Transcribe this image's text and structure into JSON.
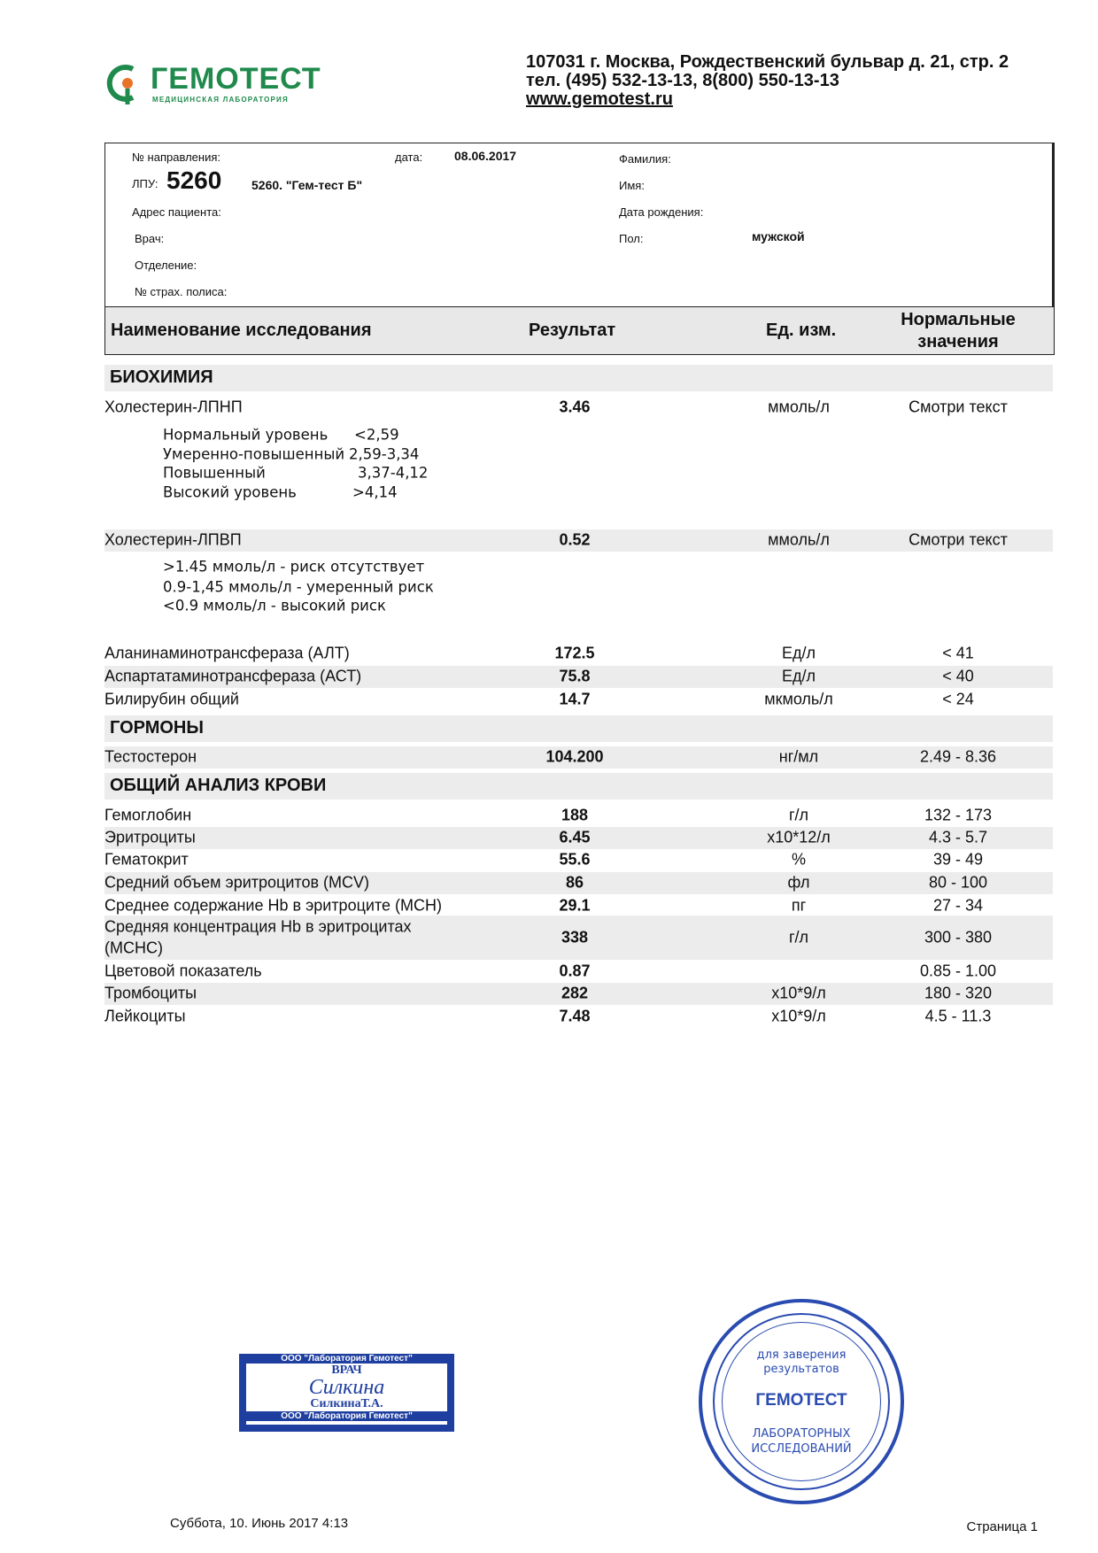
{
  "header": {
    "logo_name": "ГЕМОТЕСТ",
    "logo_sub": "МЕДИЦИНСКАЯ ЛАБОРАТОРИЯ",
    "address": "107031 г. Москва, Рождественский бульвар д. 21, стр. 2",
    "phone": "тел. (495) 532-13-13, 8(800) 550-13-13",
    "website": "www.gemotest.ru",
    "brand_color": "#1f8a4c"
  },
  "patient": {
    "referral_label": "№ направления:",
    "date_label": "дата:",
    "date": "08.06.2017",
    "lpu_label": "ЛПУ:",
    "lpu_code": "5260",
    "lpu_name": "5260. \"Гем-тест Б\"",
    "address_label": "Адрес пациента:",
    "doctor_label": "Врач:",
    "department_label": "Отделение:",
    "policy_label": "№ страх. полиса:",
    "surname_label": "Фамилия:",
    "name_label": "Имя:",
    "dob_label": "Дата рождения:",
    "sex_label": "Пол:",
    "sex": "мужской"
  },
  "table": {
    "headers": {
      "name": "Наименование исследования",
      "result": "Результат",
      "unit": "Ед. изм.",
      "norm_1": "Нормальные",
      "norm_2": "значения"
    },
    "sections": {
      "biochem": "БИОХИМИЯ",
      "hormones": "ГОРМОНЫ",
      "cbc": "ОБЩИЙ АНАЛИЗ КРОВИ"
    },
    "rows": [
      {
        "name": "Холестерин-ЛПНП",
        "result": "3.46",
        "unit": "ммоль/л",
        "norm": "Смотри текст"
      },
      {
        "name": "Холестерин-ЛПВП",
        "result": "0.52",
        "unit": "ммоль/л",
        "norm": "Смотри текст"
      },
      {
        "name": "Аланинаминотрансфераза (АЛТ)",
        "result": "172.5",
        "unit": "Ед/л",
        "norm": "< 41"
      },
      {
        "name": "Аспартатаминотрансфераза (АСТ)",
        "result": "75.8",
        "unit": "Ед/л",
        "norm": "< 40"
      },
      {
        "name": "Билирубин общий",
        "result": "14.7",
        "unit": "мкмоль/л",
        "norm": "< 24"
      },
      {
        "name": "Тестостерон",
        "result": "104.200",
        "unit": "нг/мл",
        "norm": "2.49 - 8.36"
      },
      {
        "name": "Гемоглобин",
        "result": "188",
        "unit": "г/л",
        "norm": "132 - 173"
      },
      {
        "name": "Эритроциты",
        "result": "6.45",
        "unit": "x10*12/л",
        "norm": "4.3 - 5.7"
      },
      {
        "name": "Гематокрит",
        "result": "55.6",
        "unit": "%",
        "norm": "39 - 49"
      },
      {
        "name": "Средний объем эритроцитов (MCV)",
        "result": "86",
        "unit": "фл",
        "norm": "80 - 100"
      },
      {
        "name": "Среднее содержание Hb в эритроците (MCH)",
        "result": "29.1",
        "unit": "пг",
        "norm": "27 - 34"
      },
      {
        "name": "Средняя концентрация Hb в эритроцитах",
        "name_2": "(MCHC)",
        "result": "338",
        "unit": "г/л",
        "norm": "300 - 380"
      },
      {
        "name": "Цветовой показатель",
        "result": "0.87",
        "unit": "",
        "norm": "0.85 - 1.00"
      },
      {
        "name": "Тромбоциты",
        "result": "282",
        "unit": "x10*9/л",
        "norm": "180 - 320"
      },
      {
        "name": "Лейкоциты",
        "result": "7.48",
        "unit": "x10*9/л",
        "norm": "4.5 - 11.3"
      }
    ],
    "ldl_notes": [
      {
        "label": "Нормальный уровень",
        "value": "<2,59"
      },
      {
        "label": "Умеренно-повышенный",
        "value": "2,59-3,34"
      },
      {
        "label": "Повышенный",
        "value": "3,37-4,12"
      },
      {
        "label": "Высокий уровень",
        "value": ">4,14"
      }
    ],
    "hdl_notes": [
      ">1.45 ммоль/л - риск отсутствует",
      "0.9-1,45 ммоль/л - умеренный риск",
      "<0.9 ммоль/л - высокий риск"
    ]
  },
  "stamps": {
    "doctor_top": "ООО \"Лаборатория Гемотест\"",
    "doctor_title": "ВРАЧ",
    "doctor_signature": "Силкина",
    "doctor_name": "СилкинаТ.А.",
    "doctor_bottom": "ООО \"Лаборатория Гемотест\"",
    "seal_line1": "для заверения",
    "seal_line2": "результатов",
    "seal_logo": "ГЕМОТЕСТ",
    "seal_line3": "ЛАБОРАТОРНЫХ",
    "seal_line4": "ИССЛЕДОВАНИЙ",
    "stamp_color": "#2a4bb0"
  },
  "footer": {
    "printed": "Суббота, 10. Июнь 2017 4:13",
    "page": "Страница 1"
  }
}
